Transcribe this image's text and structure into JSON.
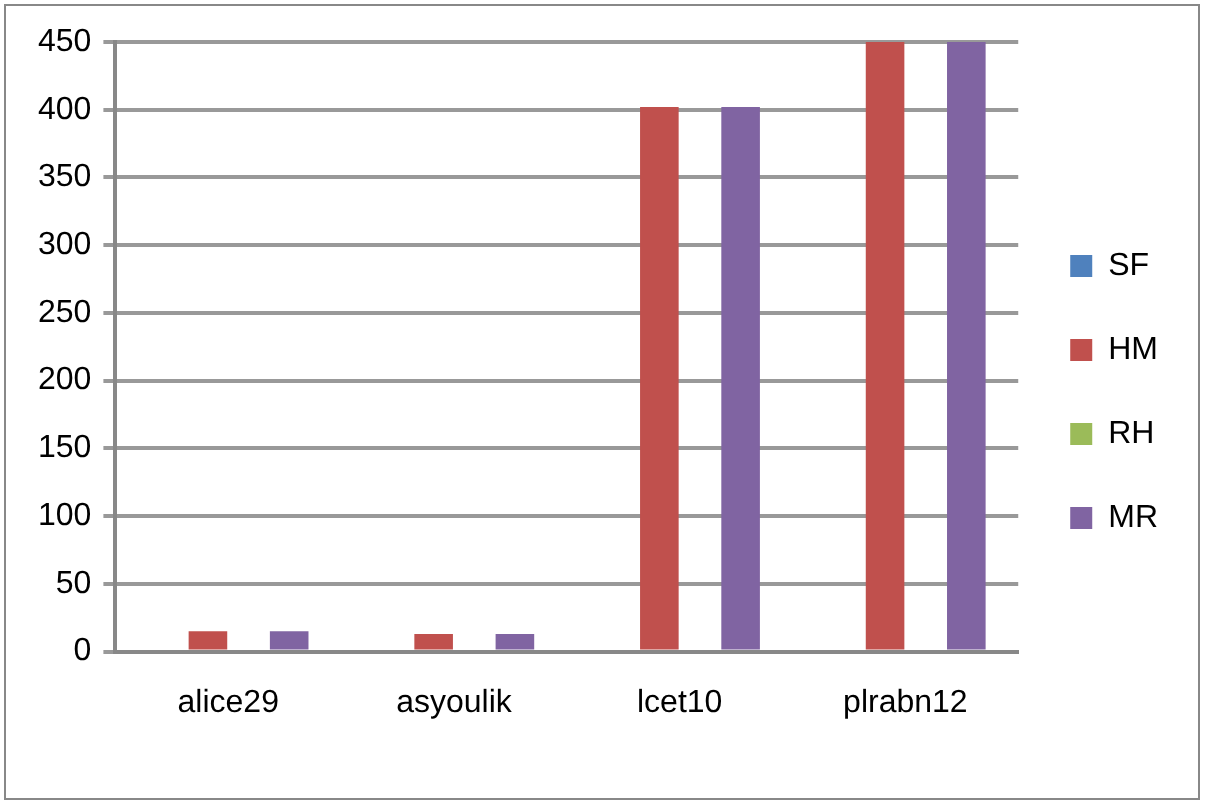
{
  "chart_data": {
    "type": "bar",
    "categories": [
      "alice29",
      "asyoulik",
      "lcet10",
      "plrabn12"
    ],
    "series": [
      {
        "name": "SF",
        "color": "#4f81bd",
        "values": [
          0,
          0,
          0,
          0
        ]
      },
      {
        "name": "HM",
        "color": "#c0504d",
        "values": [
          15,
          13,
          402,
          450
        ]
      },
      {
        "name": "RH",
        "color": "#9bbb59",
        "values": [
          0,
          0,
          0,
          0
        ]
      },
      {
        "name": "MR",
        "color": "#8064a2",
        "values": [
          15,
          13,
          402,
          450
        ]
      }
    ],
    "ylim": [
      0,
      450
    ],
    "yticks": [
      0,
      50,
      100,
      150,
      200,
      250,
      300,
      350,
      400,
      450
    ],
    "grid": "y",
    "legend": "right"
  }
}
